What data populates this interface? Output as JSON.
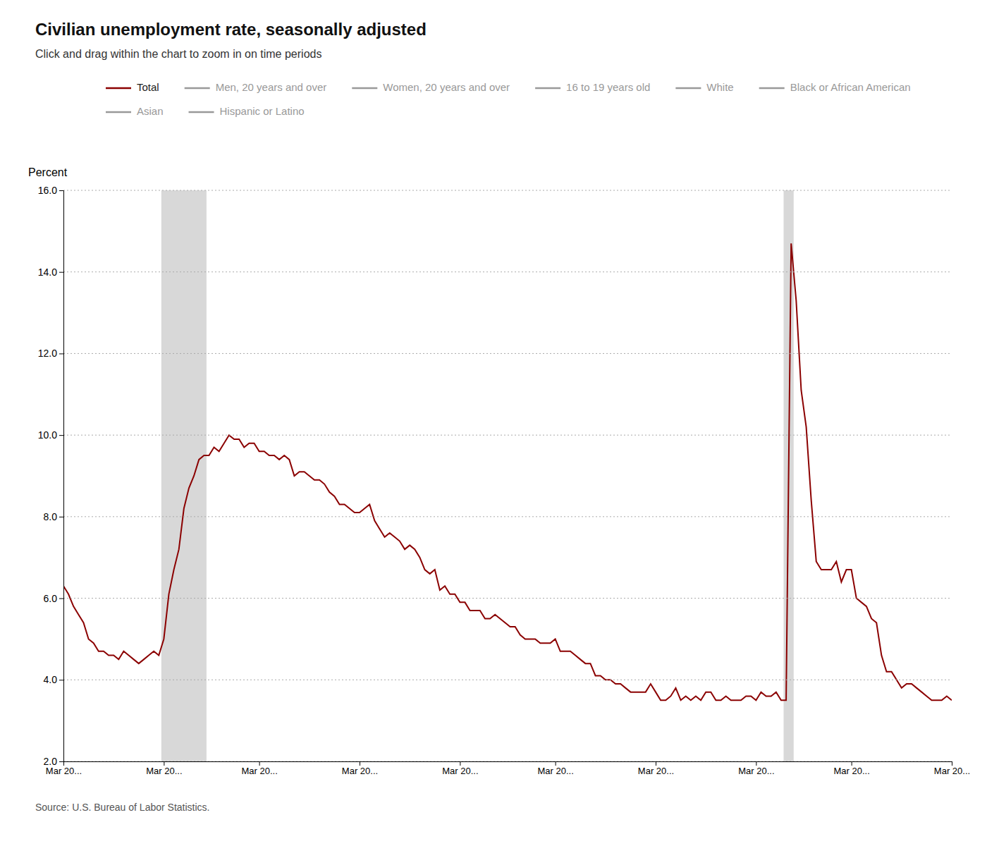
{
  "chart_data": {
    "type": "line",
    "title": "Civilian unemployment rate, seasonally adjusted",
    "subtitle": "Click and drag within the chart to zoom in on time periods",
    "y_label": "Percent",
    "source": "Source: U.S. Bureau of Labor Statistics.",
    "grid": true,
    "categories": [
      "Mar 20...",
      null,
      null,
      null,
      null,
      null,
      null,
      null,
      null,
      null,
      null,
      null,
      null,
      null,
      null,
      null,
      null,
      null,
      null,
      null,
      "Mar 20...",
      null,
      null,
      null,
      null,
      null,
      null,
      null,
      null,
      null,
      null,
      null,
      null,
      null,
      null,
      null,
      null,
      null,
      null,
      "Mar 20...",
      null,
      null,
      null,
      null,
      null,
      null,
      null,
      null,
      null,
      null,
      null,
      null,
      null,
      null,
      null,
      null,
      null,
      null,
      null,
      "Mar 20...",
      null,
      null,
      null,
      null,
      null,
      null,
      null,
      null,
      null,
      null,
      null,
      null,
      null,
      null,
      null,
      null,
      null,
      null,
      null,
      "Mar 20...",
      null,
      null,
      null,
      null,
      null,
      null,
      null,
      null,
      null,
      null,
      null,
      null,
      null,
      null,
      null,
      null,
      null,
      null,
      "Mar 20...",
      null,
      null,
      null,
      null,
      null,
      null,
      null,
      null,
      null,
      null,
      null,
      null,
      null,
      null,
      null,
      null,
      null,
      null,
      null,
      "Mar 20...",
      null,
      null,
      null,
      null,
      null,
      null,
      null,
      null,
      null,
      null,
      null,
      null,
      null,
      null,
      null,
      null,
      null,
      null,
      null,
      "Mar 20...",
      null,
      null,
      null,
      null,
      null,
      null,
      null,
      null,
      null,
      null,
      null,
      null,
      null,
      null,
      null,
      null,
      null,
      null,
      "Mar 20...",
      null,
      null,
      null,
      null,
      null,
      null,
      null,
      null,
      null,
      null,
      null,
      null,
      null,
      null,
      null,
      null,
      null,
      null,
      null,
      "Mar 20..."
    ],
    "series": [
      {
        "name": "Total",
        "color": "#8B0000",
        "values": [
          6.3,
          6.1,
          5.8,
          5.6,
          5.4,
          5.0,
          4.9,
          4.7,
          4.7,
          4.6,
          4.6,
          4.5,
          4.7,
          4.6,
          4.5,
          4.4,
          4.5,
          4.6,
          4.7,
          4.6,
          5.0,
          6.1,
          6.7,
          7.2,
          8.2,
          8.7,
          9.0,
          9.4,
          9.5,
          9.5,
          9.7,
          9.6,
          9.8,
          10.0,
          9.9,
          9.9,
          9.7,
          9.8,
          9.8,
          9.6,
          9.6,
          9.5,
          9.5,
          9.4,
          9.5,
          9.4,
          9.0,
          9.1,
          9.1,
          9.0,
          8.9,
          8.9,
          8.8,
          8.6,
          8.5,
          8.3,
          8.3,
          8.2,
          8.1,
          8.1,
          8.2,
          8.3,
          7.9,
          7.7,
          7.5,
          7.6,
          7.5,
          7.4,
          7.2,
          7.3,
          7.2,
          7.0,
          6.7,
          6.6,
          6.7,
          6.2,
          6.3,
          6.1,
          6.1,
          5.9,
          5.9,
          5.7,
          5.7,
          5.7,
          5.5,
          5.5,
          5.6,
          5.5,
          5.4,
          5.3,
          5.3,
          5.1,
          5.0,
          5.0,
          5.0,
          4.9,
          4.9,
          4.9,
          5.0,
          4.7,
          4.7,
          4.7,
          4.6,
          4.5,
          4.4,
          4.4,
          4.1,
          4.1,
          4.0,
          4.0,
          3.9,
          3.9,
          3.8,
          3.7,
          3.7,
          3.7,
          3.7,
          3.9,
          3.7,
          3.5,
          3.5,
          3.6,
          3.8,
          3.5,
          3.6,
          3.5,
          3.6,
          3.5,
          3.7,
          3.7,
          3.5,
          3.5,
          3.6,
          3.5,
          3.5,
          3.5,
          3.6,
          3.6,
          3.5,
          3.7,
          3.6,
          3.6,
          3.7,
          3.5,
          3.5,
          14.7,
          13.3,
          11.1,
          10.2,
          8.4,
          6.9,
          6.7,
          6.7,
          6.7,
          6.9,
          6.4,
          6.7,
          6.7,
          6.0,
          5.9,
          5.8,
          5.5,
          5.4,
          4.6,
          4.2,
          4.2,
          4.0,
          3.8,
          3.9,
          3.9,
          3.8,
          3.7,
          3.6,
          3.5,
          3.5,
          3.5,
          3.6,
          3.5
        ]
      }
    ],
    "legend_entries": [
      {
        "name": "Men, 20 years and over",
        "color": "#999999"
      },
      {
        "name": "Women, 20 years and over",
        "color": "#999999"
      },
      {
        "name": "16 to 19 years old",
        "color": "#999999"
      },
      {
        "name": "White",
        "color": "#999999"
      },
      {
        "name": "Black or African American",
        "color": "#999999"
      },
      {
        "name": "Asian",
        "color": "#999999"
      },
      {
        "name": "Hispanic or Latino",
        "color": "#999999"
      }
    ],
    "shaded_periods": [
      {
        "start": 20,
        "end": 29,
        "color": "#d8d8d8"
      },
      {
        "start": 144,
        "end": 146,
        "color": "#d8d8d8"
      }
    ],
    "ylim": [
      2.0,
      16.0
    ],
    "yticks": [
      {
        "value": 2.0,
        "label": "2.0"
      },
      {
        "value": 4.0,
        "label": "4.0"
      },
      {
        "value": 6.0,
        "label": "6.0"
      },
      {
        "value": 8.0,
        "label": "8.0"
      },
      {
        "value": 10.0,
        "label": "10.0"
      },
      {
        "value": 12.0,
        "label": "12.0"
      },
      {
        "value": 14.0,
        "label": "14.0"
      },
      {
        "value": 16.0,
        "label": "16.0"
      }
    ]
  }
}
